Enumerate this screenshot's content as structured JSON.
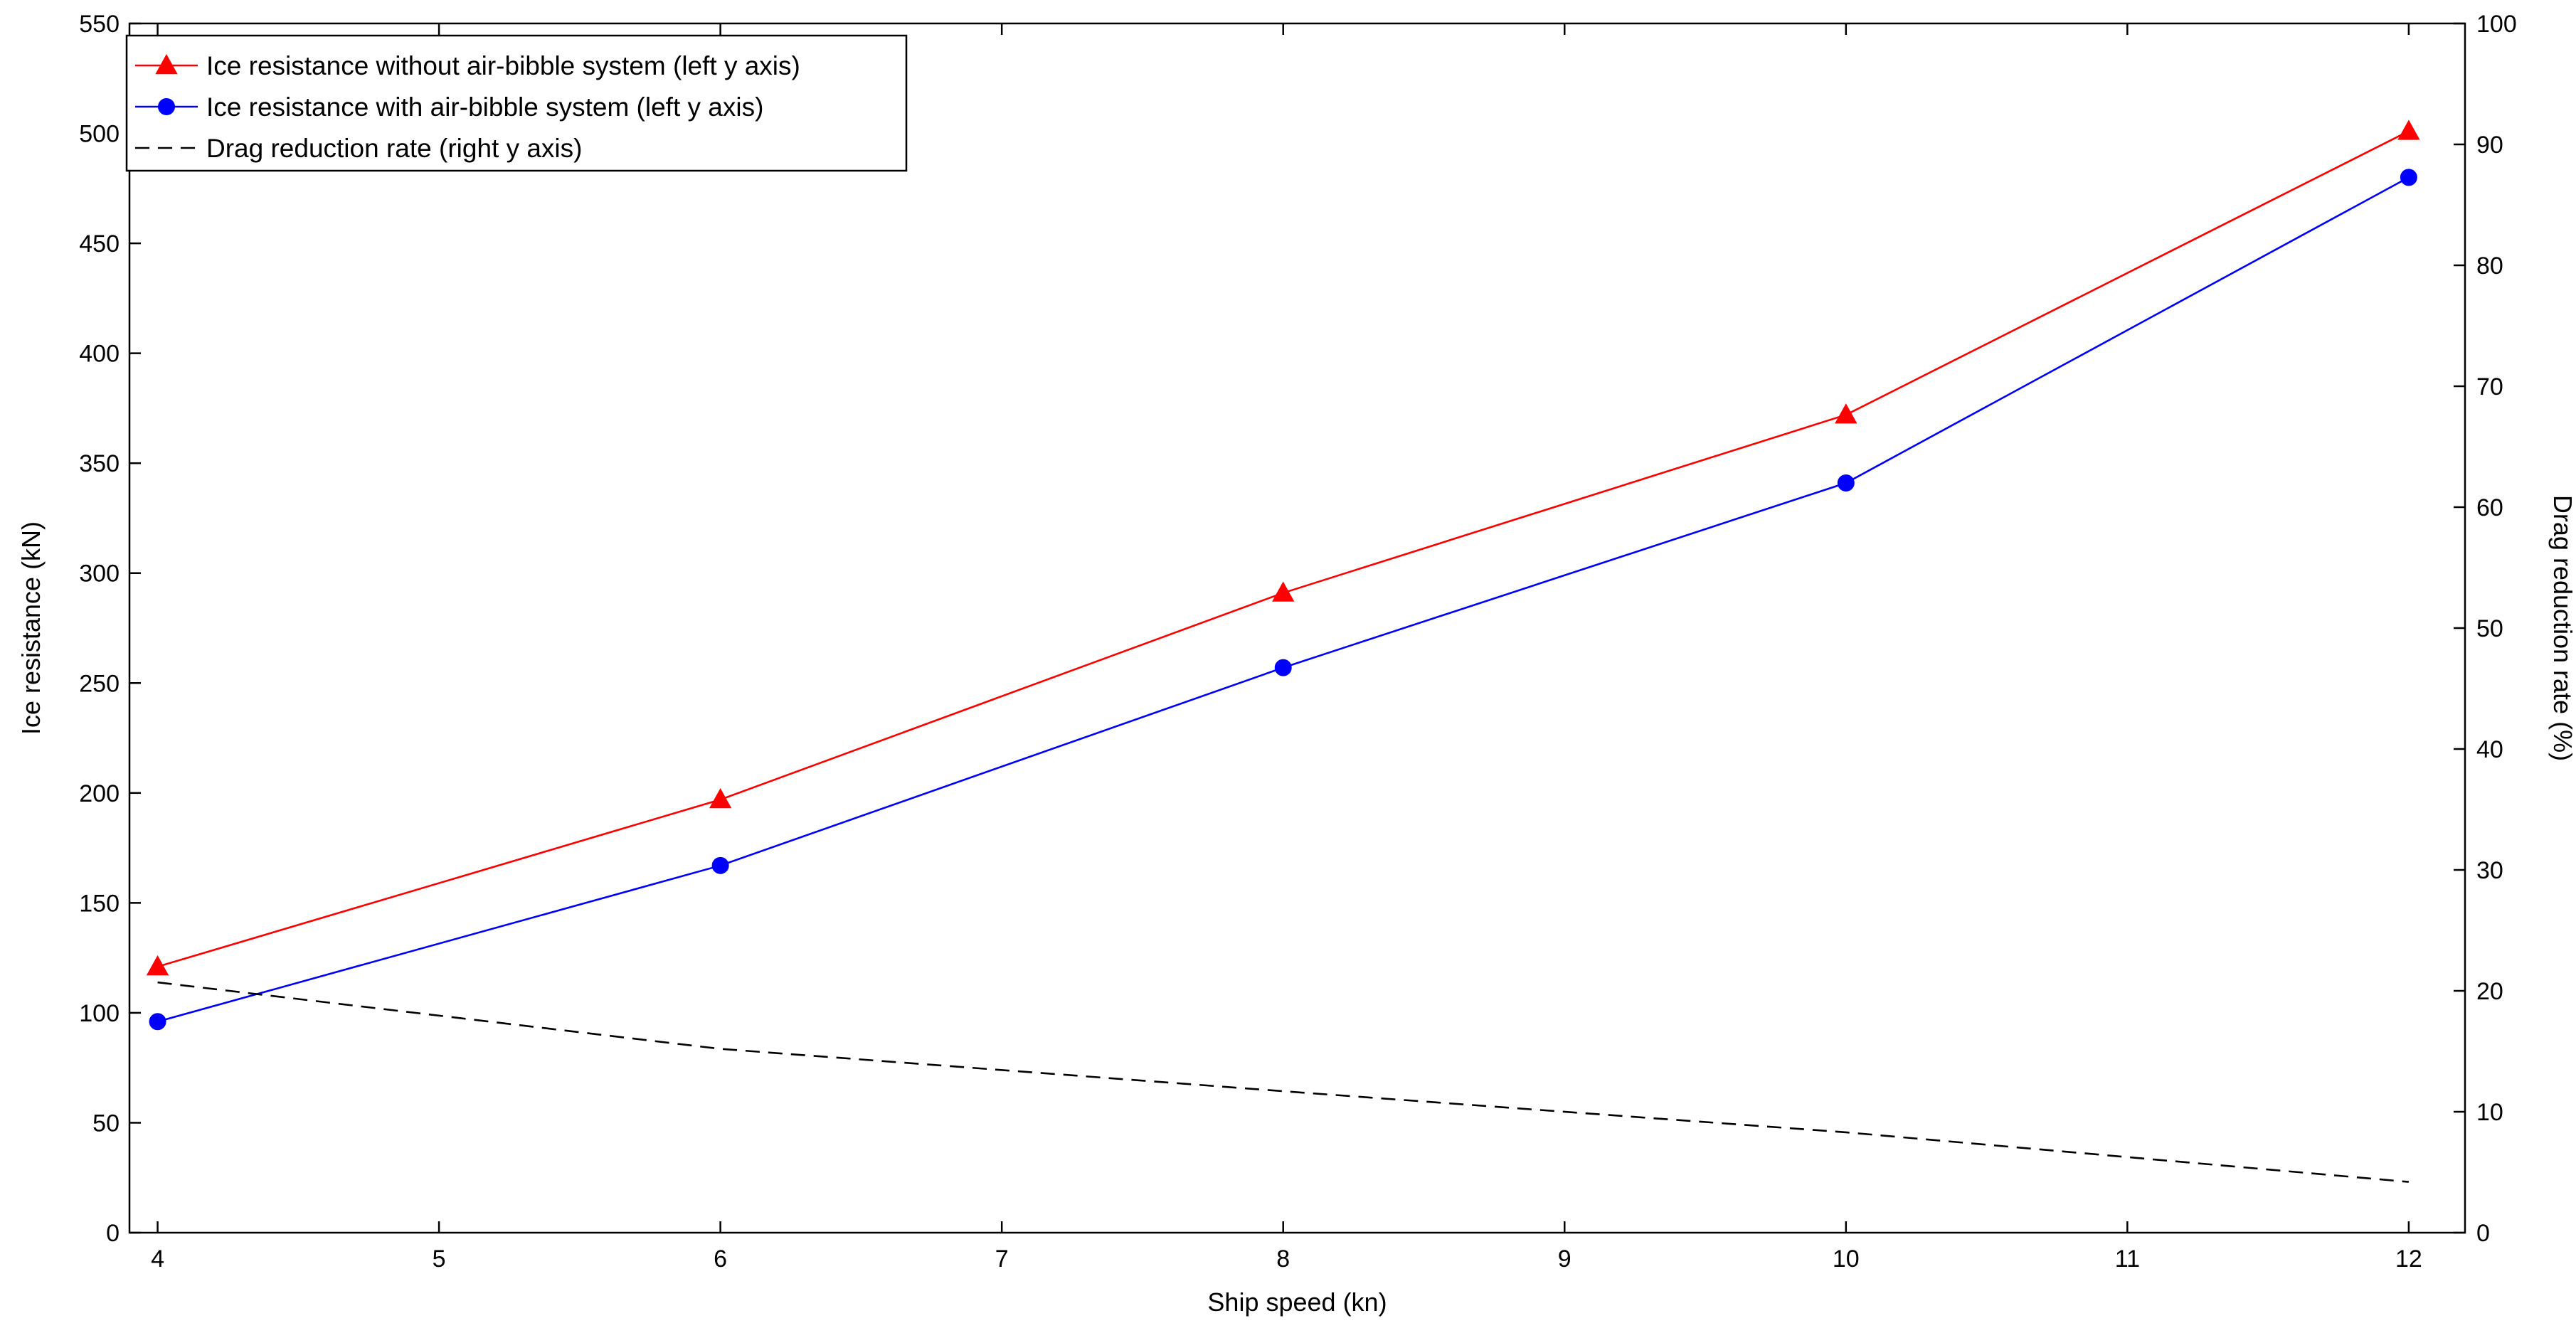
{
  "chart_data": {
    "type": "line",
    "title": "",
    "xlabel": "Ship speed (kn)",
    "ylabel_left": "Ice resistance (kN)",
    "ylabel_right": "Drag reduction rate (%)",
    "xlim": [
      3.9,
      12.2
    ],
    "ylim_left": [
      0,
      550
    ],
    "ylim_right": [
      0,
      100
    ],
    "x_ticks": [
      4,
      5,
      6,
      7,
      8,
      9,
      10,
      11,
      12
    ],
    "y_left_ticks": [
      0,
      50,
      100,
      150,
      200,
      250,
      300,
      350,
      400,
      450,
      500,
      550
    ],
    "y_right_ticks": [
      0,
      10,
      20,
      30,
      40,
      50,
      60,
      70,
      80,
      90,
      100
    ],
    "grid": false,
    "legend_position": "top-left",
    "series": [
      {
        "name": "Ice resistance without air-bibble system (left y axis)",
        "axis": "left",
        "x": [
          4,
          6,
          8,
          10,
          12
        ],
        "values": [
          121,
          197,
          291,
          372,
          501
        ],
        "color": "#ff0000",
        "marker": "triangle",
        "dash": "solid"
      },
      {
        "name": "Ice resistance with air-bibble system (left y axis)",
        "axis": "left",
        "x": [
          4,
          6,
          8,
          10,
          12
        ],
        "values": [
          96,
          167,
          257,
          341,
          480
        ],
        "color": "#0000ff",
        "marker": "circle",
        "dash": "solid"
      },
      {
        "name": "Drag reduction rate (right y axis)",
        "axis": "right",
        "x": [
          4,
          6,
          8,
          10,
          12
        ],
        "values": [
          20.7,
          15.2,
          11.7,
          8.3,
          4.2
        ],
        "color": "#000000",
        "marker": "none",
        "dash": "dashed"
      }
    ]
  }
}
